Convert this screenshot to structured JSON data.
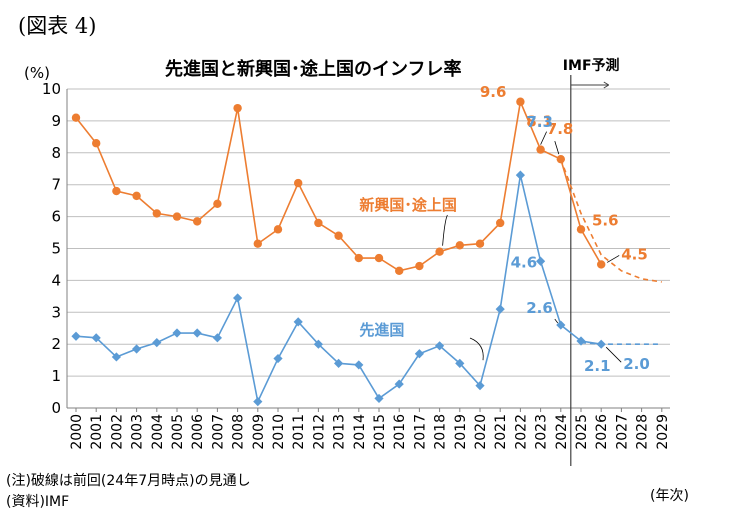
{
  "figure_label": "(図表 4)",
  "notes": {
    "note": "(注)破線は前回(24年7月時点)の見通し",
    "source": "(資料)IMF"
  },
  "chart_data": {
    "type": "line",
    "title": "先進国と新興国･途上国のインフレ率",
    "ylabel": "(%)",
    "xlabel": "(年次)",
    "ylim": [
      0,
      10
    ],
    "yticks": [
      "0",
      "1",
      "2",
      "3",
      "4",
      "5",
      "6",
      "7",
      "8",
      "9",
      "10"
    ],
    "grid": "horizontal",
    "categories": [
      "2000",
      "2001",
      "2002",
      "2003",
      "2004",
      "2005",
      "2006",
      "2007",
      "2008",
      "2009",
      "2010",
      "2011",
      "2012",
      "2013",
      "2014",
      "2015",
      "2016",
      "2017",
      "2018",
      "2019",
      "2020",
      "2021",
      "2022",
      "2023",
      "2024",
      "2025",
      "2026",
      "2027",
      "2028",
      "2029"
    ],
    "forecast_label": "IMF予測",
    "forecast_start": "2024",
    "series": [
      {
        "name": "新興国･途上国",
        "color": "#ED7D31",
        "marker": "circle",
        "values": [
          9.1,
          8.3,
          6.8,
          6.65,
          6.1,
          6.0,
          5.85,
          6.4,
          9.4,
          5.15,
          5.6,
          7.05,
          5.8,
          5.4,
          4.7,
          4.7,
          4.3,
          4.45,
          4.9,
          5.1,
          5.15,
          5.8,
          9.6,
          8.1,
          7.8,
          5.6,
          4.5,
          null,
          null,
          null
        ],
        "previous_forecast": {
          "style": "dashed",
          "points": [
            [
              "2024",
              7.8
            ],
            [
              "2025",
              6.1
            ],
            [
              "2026",
              4.8
            ],
            [
              "2027",
              4.3
            ],
            [
              "2028",
              4.05
            ],
            [
              "2029",
              3.95
            ]
          ]
        }
      },
      {
        "name": "先進国",
        "color": "#5B9BD5",
        "marker": "diamond",
        "values": [
          2.25,
          2.2,
          1.6,
          1.85,
          2.05,
          2.35,
          2.35,
          2.2,
          3.45,
          0.2,
          1.55,
          2.7,
          2.0,
          1.4,
          1.35,
          0.3,
          0.75,
          1.7,
          1.95,
          1.4,
          0.7,
          3.1,
          7.3,
          4.6,
          2.6,
          2.1,
          2.0,
          null,
          null,
          null
        ],
        "previous_forecast": {
          "style": "dashed",
          "points": [
            [
              "2025",
              2.05
            ],
            [
              "2026",
              2.0
            ],
            [
              "2027",
              2.0
            ],
            [
              "2028",
              2.0
            ],
            [
              "2029",
              2.0
            ]
          ]
        }
      }
    ],
    "data_labels": [
      {
        "series": 0,
        "x": "2022",
        "text": "9.6"
      },
      {
        "series": 0,
        "x": "2023",
        "text": "8.1"
      },
      {
        "series": 0,
        "x": "2024",
        "text": "7.8"
      },
      {
        "series": 0,
        "x": "2025",
        "text": "5.6"
      },
      {
        "series": 0,
        "x": "2026",
        "text": "4.5"
      },
      {
        "series": 1,
        "x": "2022",
        "text": "7.3"
      },
      {
        "series": 1,
        "x": "2023",
        "text": "4.6"
      },
      {
        "series": 1,
        "x": "2024",
        "text": "2.6"
      },
      {
        "series": 1,
        "x": "2025",
        "text": "2.1"
      },
      {
        "series": 1,
        "x": "2026",
        "text": "2.0"
      }
    ]
  }
}
